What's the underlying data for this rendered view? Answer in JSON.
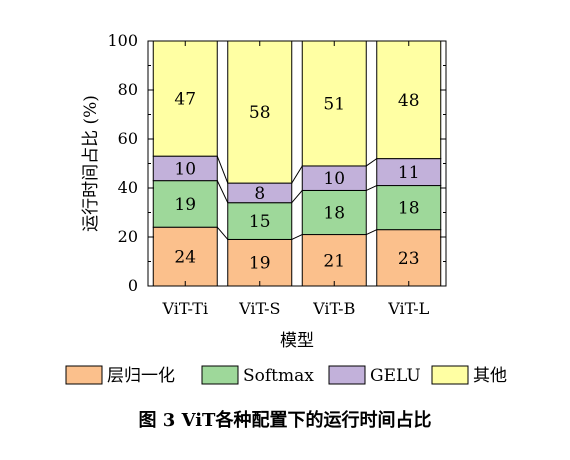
{
  "chart_data": {
    "type": "bar",
    "stacked": true,
    "categories": [
      "ViT-Ti",
      "ViT-S",
      "ViT-B",
      "ViT-L"
    ],
    "series": [
      {
        "name": "层归一化",
        "values": [
          24,
          19,
          21,
          23
        ],
        "color": "#fbc08c"
      },
      {
        "name": "Softmax",
        "values": [
          19,
          15,
          18,
          18
        ],
        "color": "#9ed89a"
      },
      {
        "name": "GELU",
        "values": [
          10,
          8,
          10,
          11
        ],
        "color": "#c2b1da"
      },
      {
        "name": "其他",
        "values": [
          47,
          58,
          51,
          48
        ],
        "color": "#ffffa3"
      }
    ],
    "xlabel": "模型",
    "ylabel": "运行时间占比 (%)",
    "ylim": [
      0,
      100
    ],
    "yticks": [
      0,
      20,
      40,
      60,
      80,
      100
    ],
    "legend_position": "bottom",
    "caption": "图 3 ViT各种配置下的运行时间占比"
  }
}
